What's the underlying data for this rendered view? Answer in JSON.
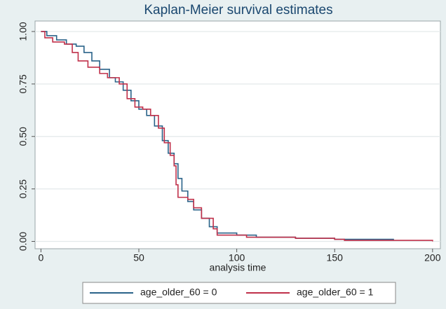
{
  "chart_data": {
    "type": "line",
    "step": true,
    "title": "Kaplan-Meier survival estimates",
    "x_label": "analysis time",
    "xlim": [
      -3,
      204
    ],
    "xticks": [
      0,
      50,
      100,
      150,
      200
    ],
    "ylim": [
      -0.035,
      1.05
    ],
    "yticks": [
      {
        "value": 0,
        "label": "0.00"
      },
      {
        "value": 0.25,
        "label": "0.25"
      },
      {
        "value": 0.5,
        "label": "0.50"
      },
      {
        "value": 0.75,
        "label": "0.75"
      },
      {
        "value": 1,
        "label": "1.00"
      }
    ],
    "grid": true,
    "legend": "bottom",
    "series": [
      {
        "name": "age_older_60 = 0",
        "color": "#2a6389",
        "x": [
          0,
          3,
          8,
          13,
          18,
          22,
          26,
          30,
          35,
          38,
          42,
          46,
          50,
          54,
          58,
          62,
          65,
          68,
          70,
          72,
          75,
          78,
          82,
          86,
          90,
          100,
          110,
          130,
          150,
          180
        ],
        "values": [
          1.0,
          0.98,
          0.96,
          0.94,
          0.93,
          0.9,
          0.86,
          0.82,
          0.78,
          0.76,
          0.72,
          0.67,
          0.63,
          0.6,
          0.55,
          0.48,
          0.42,
          0.37,
          0.3,
          0.24,
          0.19,
          0.15,
          0.11,
          0.07,
          0.04,
          0.03,
          0.02,
          0.015,
          0.01,
          0.005
        ]
      },
      {
        "name": "age_older_60 = 1",
        "color": "#c0304a",
        "x": [
          0,
          2,
          6,
          12,
          16,
          19,
          24,
          30,
          34,
          40,
          44,
          48,
          52,
          56,
          60,
          63,
          66,
          68,
          69,
          70,
          75,
          78,
          82,
          88,
          90,
          105,
          130,
          150,
          155,
          200
        ],
        "values": [
          1.0,
          0.97,
          0.95,
          0.94,
          0.9,
          0.86,
          0.83,
          0.8,
          0.78,
          0.75,
          0.68,
          0.64,
          0.63,
          0.6,
          0.54,
          0.47,
          0.41,
          0.36,
          0.27,
          0.21,
          0.2,
          0.16,
          0.11,
          0.06,
          0.03,
          0.02,
          0.015,
          0.01,
          0.005,
          0.0
        ]
      }
    ]
  }
}
